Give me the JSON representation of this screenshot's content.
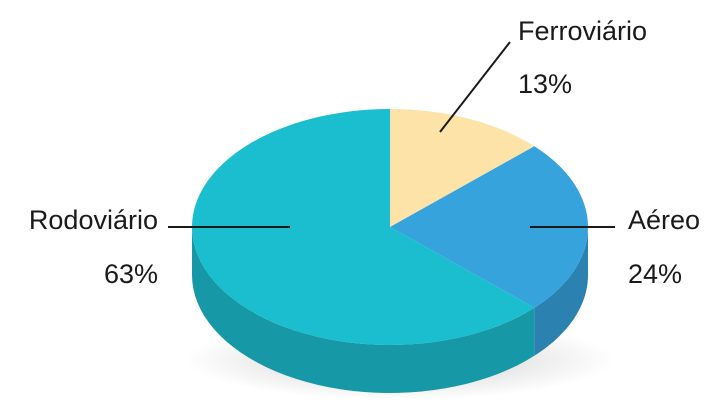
{
  "chart_data": {
    "type": "pie",
    "categories": [
      "Ferroviário",
      "Aéreo",
      "Rodoviário"
    ],
    "values": [
      13,
      24,
      63
    ],
    "value_labels": [
      "13%",
      "24%",
      "63%"
    ],
    "colors": [
      "#fde3a8",
      "#36a3dc",
      "#1bbecf"
    ]
  }
}
